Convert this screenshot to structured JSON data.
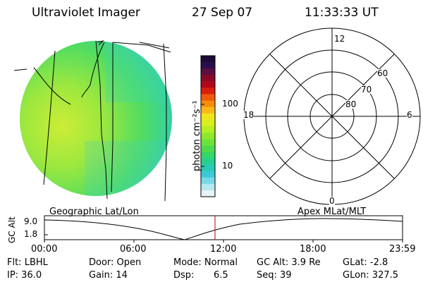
{
  "header": {
    "title": "Ultraviolet Imager",
    "date": "27 Sep 07",
    "time": "11:33:33 UT"
  },
  "colorbar": {
    "unit": "photon cm⁻²s⁻¹",
    "ticks": [
      "100",
      "10"
    ],
    "colors": [
      "#1b0b35",
      "#2a0d4a",
      "#5a1040",
      "#8a0a2a",
      "#b00a1a",
      "#d81f0f",
      "#ef5b0a",
      "#f58c0a",
      "#f8b81a",
      "#f1e41c",
      "#d9ef1e",
      "#b6ee24",
      "#8fe82c",
      "#6de33a",
      "#4fdc4c",
      "#36d667",
      "#25cf8c",
      "#27cbb6",
      "#3ec9d6",
      "#78d8e6",
      "#b6e8f0",
      "#e6f5f8"
    ]
  },
  "polar": {
    "mlt_labels": [
      "12",
      "18",
      "6",
      "0"
    ],
    "lat_labels": [
      "60",
      "70",
      "80"
    ]
  },
  "altitude_plot": {
    "left_label": "Geographic Lat/Lon",
    "right_label": "Apex MLat/MLT",
    "axis_label": "GC Alt",
    "y_ticks": [
      "9.0",
      "1.8"
    ],
    "x_ticks": [
      "00:00",
      "06:00",
      "12:00",
      "18:00",
      "23:59"
    ]
  },
  "status": {
    "filter": "Flt: LBHL",
    "ip": "IP: 36.0",
    "door": "Door: Open",
    "gain": "Gain: 14",
    "mode": "Mode: Normal",
    "dsp_label": "Dsp:",
    "dsp_value": "6.5",
    "gc_alt": "GC Alt: 3.9 Re",
    "seq": "Seq: 39",
    "glat": "GLat:  -2.8",
    "glon": "GLon: 327.5"
  }
}
